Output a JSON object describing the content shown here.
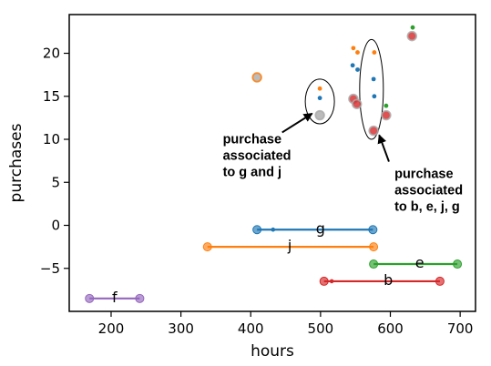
{
  "chart_data": {
    "type": "scatter",
    "xlabel": "hours",
    "ylabel": "purchases",
    "xlim": [
      140,
      722
    ],
    "ylim": [
      -10,
      24.5
    ],
    "xticks": [
      200,
      300,
      400,
      500,
      600,
      700
    ],
    "yticks": [
      -5,
      0,
      5,
      10,
      15,
      20
    ],
    "ytick_labels": [
      "−5",
      "0",
      "5",
      "10",
      "15",
      "20"
    ],
    "colors": {
      "b": "#d62728",
      "e": "#2ca02c",
      "j": "#ff7f0e",
      "g": "#1f77b4",
      "f": "#9467bd",
      "gray": "#aaaaaa"
    },
    "segments": [
      {
        "name": "g",
        "color": "#1f77b4",
        "x_start": 409,
        "x_end": 575,
        "y": -0.5,
        "inner_point": 432
      },
      {
        "name": "j",
        "color": "#ff7f0e",
        "x_start": 338,
        "x_end": 576,
        "y": -2.5,
        "inner_point": null
      },
      {
        "name": "e",
        "color": "#2ca02c",
        "x_start": 576,
        "x_end": 696,
        "y": -4.5,
        "inner_point": null
      },
      {
        "name": "b",
        "color": "#d62728",
        "x_start": 505,
        "x_end": 671,
        "y": -6.5,
        "inner_point": 516
      },
      {
        "name": "f",
        "color": "#9467bd",
        "x_start": 169,
        "x_end": 241,
        "y": -8.5,
        "inner_point": null
      }
    ],
    "segment_labels": [
      {
        "text": "g",
        "x": 500,
        "y": -0.3
      },
      {
        "text": "j",
        "x": 456,
        "y": -2.3
      },
      {
        "text": "e",
        "x": 642,
        "y": -4.3
      },
      {
        "text": "b",
        "x": 597,
        "y": -6.3
      },
      {
        "text": "f",
        "x": 205,
        "y": -8.3
      }
    ],
    "big_points": [
      {
        "x": 409,
        "y": 17.2,
        "color": "#aaaaaa",
        "ring": "#ff7f0e"
      },
      {
        "x": 499,
        "y": 12.8,
        "color": "#aaaaaa",
        "ring": "#aaaaaa"
      },
      {
        "x": 547,
        "y": 14.7,
        "color": "#d62728",
        "ring": "#aaaaaa"
      },
      {
        "x": 552,
        "y": 14.1,
        "color": "#d62728",
        "ring": "#aaaaaa"
      },
      {
        "x": 576,
        "y": 11.0,
        "color": "#d62728",
        "ring": "#aaaaaa"
      },
      {
        "x": 594,
        "y": 12.8,
        "color": "#d62728",
        "ring": "#aaaaaa"
      },
      {
        "x": 631,
        "y": 22.0,
        "color": "#d62728",
        "ring": "#aaaaaa"
      }
    ],
    "small_points": [
      {
        "x": 499,
        "y": 15.9,
        "color": "#ff7f0e"
      },
      {
        "x": 499,
        "y": 14.8,
        "color": "#1f77b4"
      },
      {
        "x": 547,
        "y": 20.6,
        "color": "#ff7f0e"
      },
      {
        "x": 553,
        "y": 20.1,
        "color": "#ff7f0e"
      },
      {
        "x": 546,
        "y": 18.6,
        "color": "#1f77b4"
      },
      {
        "x": 553,
        "y": 18.1,
        "color": "#1f77b4"
      },
      {
        "x": 577,
        "y": 20.1,
        "color": "#ff7f0e"
      },
      {
        "x": 576,
        "y": 17.0,
        "color": "#1f77b4"
      },
      {
        "x": 577,
        "y": 15.0,
        "color": "#1f77b4"
      },
      {
        "x": 594,
        "y": 13.9,
        "color": "#2ca02c"
      },
      {
        "x": 632,
        "y": 23.0,
        "color": "#2ca02c"
      }
    ],
    "ellipses": [
      {
        "cx": 499,
        "cy": 14.4,
        "rx": 16,
        "ry": 2.6
      },
      {
        "cx": 573,
        "cy": 15.8,
        "rx": 13,
        "ry": 5.8
      }
    ],
    "annotations": [
      {
        "lines": [
          "purchase",
          "associated",
          "to g and j"
        ],
        "text_x": 360,
        "text_y": 9.5,
        "arrow_from": [
          445,
          10.8
        ],
        "arrow_to": [
          488,
          13.0
        ]
      },
      {
        "lines": [
          "purchase",
          "associated",
          "to b, e, j, g"
        ],
        "text_x": 606,
        "text_y": 5.5,
        "arrow_from": [
          598,
          7.4
        ],
        "arrow_to": [
          584,
          10.5
        ]
      }
    ]
  }
}
